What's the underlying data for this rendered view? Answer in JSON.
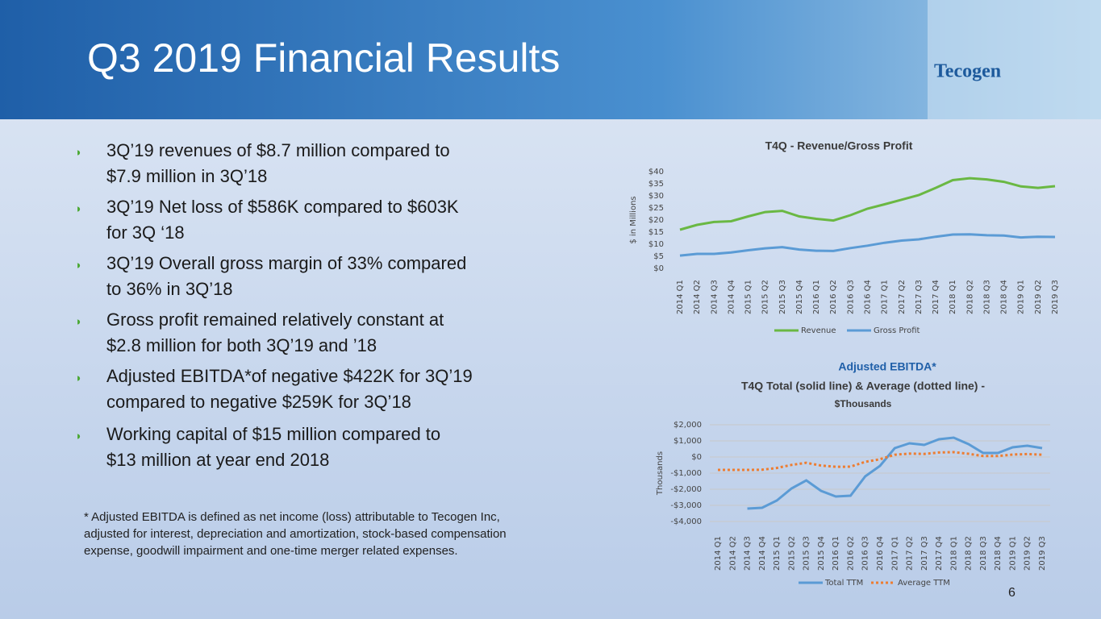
{
  "title": "Q3 2019 Financial Results",
  "logo": "Tecogen",
  "bullets": [
    [
      "3Q’19 revenues of $8.7 million compared to",
      "$7.9 million in 3Q’18"
    ],
    [
      "3Q’19 Net loss of $586K compared to $603K",
      "for 3Q ‘18"
    ],
    [
      "3Q’19 Overall gross margin of 33% compared",
      "to 36% in 3Q’18"
    ],
    [
      "Gross profit remained relatively constant at",
      "$2.8 million for both 3Q’19 and ’18"
    ],
    [
      "Adjusted EBITDA*of negative $422K for 3Q’19",
      "compared to negative $259K for 3Q’18"
    ],
    [
      "Working capital of $15 million compared to",
      "$13 million at year end 2018"
    ]
  ],
  "footnote": [
    "* Adjusted EBITDA is defined as net income (loss) attributable to Tecogen Inc,",
    "adjusted for interest, depreciation and amortization, stock-based compensation",
    "expense, goodwill impairment and one-time merger related expenses."
  ],
  "page_number": "6",
  "chart_data": [
    {
      "type": "line",
      "title": "T4Q - Revenue/Gross Profit",
      "ylabel": "$ in Millions",
      "categories": [
        "2014 Q1",
        "2014 Q2",
        "2014 Q3",
        "2014 Q4",
        "2015 Q1",
        "2015 Q2",
        "2015 Q3",
        "2015 Q4",
        "2016 Q1",
        "2016 Q2",
        "2016 Q3",
        "2016 Q4",
        "2017 Q1",
        "2017 Q2",
        "2017 Q3",
        "2017 Q4",
        "2018 Q1",
        "2018 Q2",
        "2018 Q3",
        "2018 Q4",
        "2019 Q1",
        "2019 Q2",
        "2019 Q3"
      ],
      "series": [
        {
          "name": "Revenue",
          "color": "#6ab843",
          "values": [
            16,
            18,
            19.2,
            19.5,
            21.5,
            23.3,
            23.8,
            21.5,
            20.5,
            19.8,
            22,
            24.7,
            26.5,
            28.4,
            30.3,
            33.3,
            36.5,
            37.3,
            36.8,
            35.8,
            33.9,
            33.3,
            34
          ]
        },
        {
          "name": "Gross Profit",
          "color": "#5b9bd5",
          "values": [
            5.3,
            6,
            6,
            6.6,
            7.5,
            8.3,
            8.8,
            7.8,
            7.3,
            7.2,
            8.4,
            9.4,
            10.6,
            11.5,
            12,
            13.1,
            14,
            14.1,
            13.7,
            13.6,
            12.8,
            13.1,
            13
          ]
        }
      ],
      "ylim": [
        0,
        40
      ],
      "yticks": [
        {
          "value": 0,
          "label": "$0"
        },
        {
          "value": 5,
          "label": "$5"
        },
        {
          "value": 10,
          "label": "$10"
        },
        {
          "value": 15,
          "label": "$15"
        },
        {
          "value": 20,
          "label": "$20"
        },
        {
          "value": 25,
          "label": "$25"
        },
        {
          "value": 30,
          "label": "$30"
        },
        {
          "value": 35,
          "label": "$35"
        },
        {
          "value": 40,
          "label": "$40"
        }
      ],
      "grid": false,
      "legend": "bottom"
    },
    {
      "type": "line",
      "title": "Adjusted EBITDA*",
      "subtitle": "T4Q  Total (solid line) & Average (dotted line) -",
      "unit_label": "$Thousands",
      "ylabel": "Thousands",
      "categories": [
        "2014 Q1",
        "2014 Q2",
        "2014 Q3",
        "2014 Q4",
        "2015 Q1",
        "2015 Q2",
        "2015 Q3",
        "2015 Q4",
        "2016 Q1",
        "2016 Q2",
        "2016 Q3",
        "2016 Q4",
        "2017 Q1",
        "2017 Q2",
        "2017 Q3",
        "2017 Q4",
        "2018 Q1",
        "2018 Q2",
        "2018 Q3",
        "2018 Q4",
        "2019 Q1",
        "2019 Q2",
        "2019 Q3"
      ],
      "series": [
        {
          "name": "Total TTM",
          "color": "#5b9bd5",
          "dashed": false,
          "values": [
            null,
            null,
            -3200,
            -3150,
            -2700,
            -1950,
            -1450,
            -2100,
            -2450,
            -2400,
            -1200,
            -550,
            550,
            850,
            750,
            1100,
            1200,
            800,
            250,
            250,
            600,
            700,
            550
          ]
        },
        {
          "name": "Average TTM",
          "color": "#ed7d31",
          "dashed": true,
          "values": [
            -800,
            -800,
            -800,
            -790,
            -680,
            -490,
            -360,
            -530,
            -610,
            -600,
            -300,
            -140,
            140,
            210,
            190,
            280,
            300,
            200,
            60,
            60,
            150,
            180,
            140
          ]
        }
      ],
      "ylim": [
        -4000,
        2000
      ],
      "yticks": [
        {
          "value": -4000,
          "label": "-$4,000"
        },
        {
          "value": -3000,
          "label": "-$3,000"
        },
        {
          "value": -2000,
          "label": "-$2,000"
        },
        {
          "value": -1000,
          "label": "-$1,000"
        },
        {
          "value": 0,
          "label": "$0"
        },
        {
          "value": 1000,
          "label": "$1,000"
        },
        {
          "value": 2000,
          "label": "$2,000"
        }
      ],
      "grid": true,
      "legend": "bottom"
    }
  ]
}
